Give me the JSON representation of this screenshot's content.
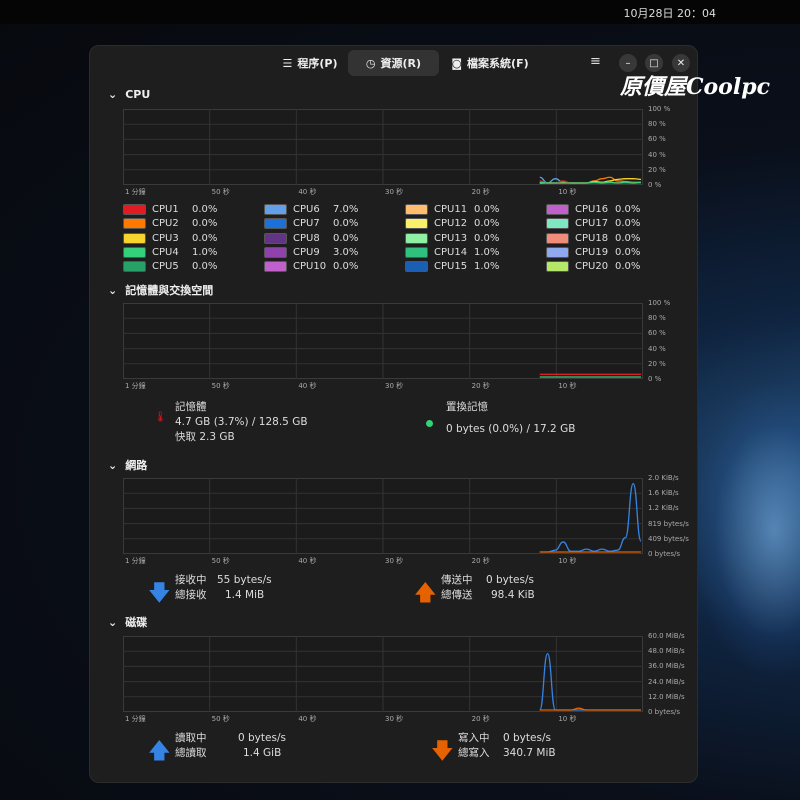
{
  "topbar": {
    "clock": "10月28日 20：04"
  },
  "header": {
    "tabs": [
      {
        "label": "程序(P)",
        "icon": "list-icon"
      },
      {
        "label": "資源(R)",
        "icon": "gauge-icon",
        "active": true
      },
      {
        "label": "檔案系統(F)",
        "icon": "disk-icon"
      }
    ]
  },
  "logo": "原價屋Coolpc",
  "time_axis": [
    "1 分鐘",
    "50 秒",
    "40 秒",
    "30 秒",
    "20 秒",
    "10 秒"
  ],
  "cpu": {
    "title": "CPU",
    "yticks": [
      "100 %",
      "80 %",
      "60 %",
      "40 %",
      "20 %",
      "0 %"
    ],
    "cores": [
      {
        "name": "CPU1",
        "value": "0.0%",
        "color": "#e01b24"
      },
      {
        "name": "CPU2",
        "value": "0.0%",
        "color": "#ff7800"
      },
      {
        "name": "CPU3",
        "value": "0.0%",
        "color": "#f6d32d"
      },
      {
        "name": "CPU4",
        "value": "1.0%",
        "color": "#33d17a"
      },
      {
        "name": "CPU5",
        "value": "0.0%",
        "color": "#26a269"
      },
      {
        "name": "CPU6",
        "value": "7.0%",
        "color": "#62a0ea"
      },
      {
        "name": "CPU7",
        "value": "0.0%",
        "color": "#1c71d8"
      },
      {
        "name": "CPU8",
        "value": "0.0%",
        "color": "#613583"
      },
      {
        "name": "CPU9",
        "value": "3.0%",
        "color": "#9141ac"
      },
      {
        "name": "CPU10",
        "value": "0.0%",
        "color": "#c061cb"
      },
      {
        "name": "CPU11",
        "value": "0.0%",
        "color": "#ffbe6f"
      },
      {
        "name": "CPU12",
        "value": "0.0%",
        "color": "#f9f06b"
      },
      {
        "name": "CPU13",
        "value": "0.0%",
        "color": "#8ff0a4"
      },
      {
        "name": "CPU14",
        "value": "1.0%",
        "color": "#2ec27e"
      },
      {
        "name": "CPU15",
        "value": "1.0%",
        "color": "#1a5fb4"
      },
      {
        "name": "CPU16",
        "value": "0.0%",
        "color": "#c061cb"
      },
      {
        "name": "CPU17",
        "value": "0.0%",
        "color": "#7ee8c0"
      },
      {
        "name": "CPU18",
        "value": "0.0%",
        "color": "#f08c7a"
      },
      {
        "name": "CPU19",
        "value": "0.0%",
        "color": "#8fa8f0"
      },
      {
        "name": "CPU20",
        "value": "0.0%",
        "color": "#b5e86a"
      }
    ],
    "series": [
      {
        "color": "#62a0ea",
        "values": [
          8,
          0,
          6,
          1,
          0,
          0,
          0,
          0,
          0,
          0,
          0,
          0,
          0,
          0
        ]
      },
      {
        "color": "#ff7800",
        "values": [
          0,
          0,
          0,
          1,
          0,
          0,
          0,
          3,
          6,
          8,
          3,
          2,
          1,
          1
        ]
      },
      {
        "color": "#f6d32d",
        "values": [
          0,
          0,
          0,
          0,
          0,
          0,
          0,
          2,
          1,
          3,
          5,
          6,
          6,
          5
        ]
      },
      {
        "color": "#e01b24",
        "values": [
          3,
          0,
          0,
          3,
          0,
          0,
          0,
          0,
          0,
          0,
          1,
          0,
          0,
          0
        ]
      },
      {
        "color": "#33d17a",
        "values": [
          1,
          0,
          0,
          0,
          0,
          0,
          0,
          1,
          0,
          1,
          0,
          1,
          0,
          1
        ]
      }
    ]
  },
  "memory": {
    "title": "記憶體與交換空間",
    "yticks": [
      "100 %",
      "80 %",
      "60 %",
      "40 %",
      "20 %",
      "0 %"
    ],
    "mem_label": "記憶體",
    "mem_value": "4.7 GB (3.7%) / 128.5 GB",
    "cache": "快取 2.3 GB",
    "mem_color": "#e01b24",
    "swap_label": "置換記憶",
    "swap_value": "0 bytes (0.0%) / 17.2 GB",
    "swap_color": "#33d17a",
    "series": [
      {
        "color": "#e01b24",
        "values": [
          3.7,
          3.7,
          3.7,
          3.7,
          3.7,
          3.7,
          3.7,
          3.7,
          3.7,
          3.7,
          3.7,
          3.7,
          3.7,
          3.7
        ]
      },
      {
        "color": "#33d17a",
        "values": [
          0,
          0,
          0,
          0,
          0,
          0,
          0,
          0,
          0,
          0,
          0,
          0,
          0,
          0
        ]
      }
    ]
  },
  "network": {
    "title": "網路",
    "yticks": [
      "2.0 KiB/s",
      "1.6 KiB/s",
      "1.2 KiB/s",
      "819 bytes/s",
      "409 bytes/s",
      "0 bytes/s"
    ],
    "recv_label": "接收中",
    "recv_value": "55 bytes/s",
    "recv_total_label": "總接收",
    "recv_total": "1.4 MiB",
    "recv_color": "#3584e4",
    "send_label": "傳送中",
    "send_value": "0 bytes/s",
    "send_total_label": "總傳送",
    "send_total": "98.4 KiB",
    "send_color": "#e66100",
    "series": [
      {
        "color": "#3584e4",
        "values": [
          0,
          0,
          0.05,
          0.28,
          0.02,
          0.02,
          0.08,
          0.02,
          0.08,
          0.02,
          0.05,
          0.4,
          1.9,
          0.3
        ]
      },
      {
        "color": "#e66100",
        "values": [
          0,
          0,
          0,
          0,
          0,
          0,
          0,
          0,
          0,
          0,
          0,
          0,
          0,
          0
        ]
      }
    ]
  },
  "disk": {
    "title": "磁碟",
    "yticks": [
      "60.0 MiB/s",
      "48.0 MiB/s",
      "36.0 MiB/s",
      "24.0 MiB/s",
      "12.0 MiB/s",
      "0 bytes/s"
    ],
    "read_label": "讀取中",
    "read_value": "0 bytes/s",
    "read_total_label": "總讀取",
    "read_total": "1.4 GiB",
    "read_color": "#3584e4",
    "write_label": "寫入中",
    "write_value": "0 bytes/s",
    "write_total_label": "總寫入",
    "write_total": "340.7 MiB",
    "write_color": "#e66100",
    "series": [
      {
        "color": "#3584e4",
        "values": [
          0,
          47,
          0,
          0,
          0,
          0,
          0,
          0,
          0,
          0,
          0,
          0,
          0,
          0
        ]
      },
      {
        "color": "#e66100",
        "values": [
          0,
          0,
          0,
          0,
          0,
          1.5,
          0,
          0,
          0,
          0,
          0,
          0,
          0,
          0
        ]
      }
    ]
  }
}
